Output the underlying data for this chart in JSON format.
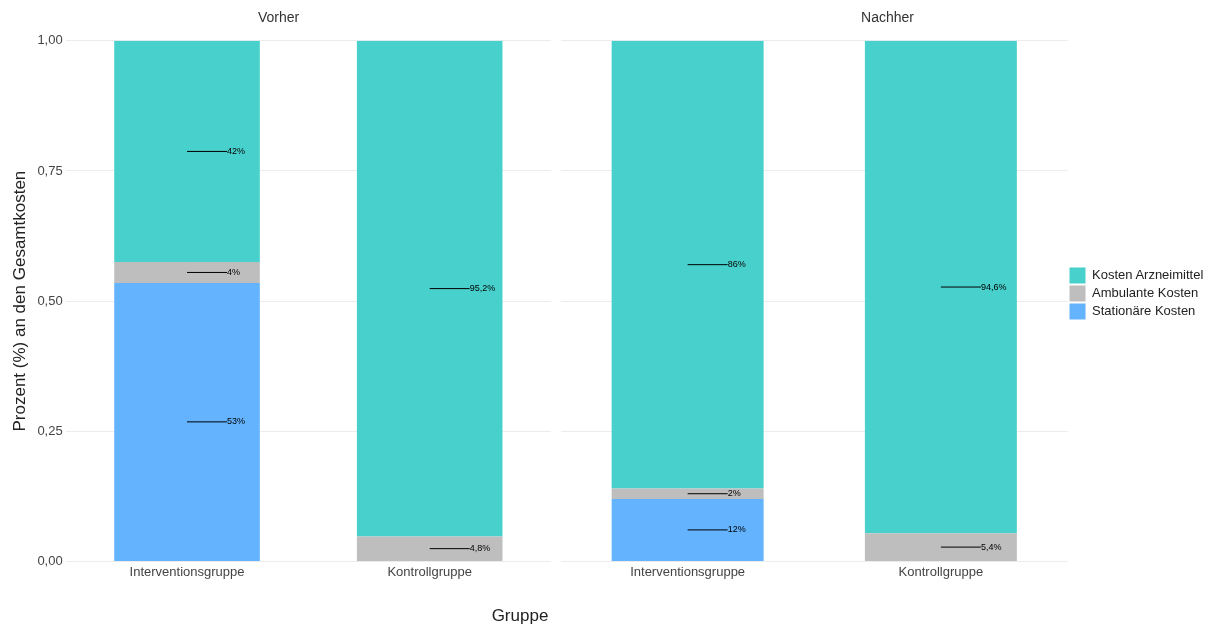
{
  "chart_data": [
    {
      "type": "bar",
      "title": "Vorher",
      "ylabel": "Prozent (%) an den Gesamtkosten",
      "xlabel": "Gruppe",
      "categories": [
        "Interventionsgruppe",
        "Kontrollgruppe"
      ],
      "stacked": true,
      "grid": true,
      "legend": false,
      "ylim": [
        0,
        1
      ],
      "yticks": [
        {
          "value": 0,
          "label": "0,00"
        },
        {
          "value": 0.25,
          "label": "0,25"
        },
        {
          "value": 0.5,
          "label": "0,50"
        },
        {
          "value": 0.75,
          "label": "0,75"
        },
        {
          "value": 1,
          "label": "1,00"
        }
      ],
      "series": [
        {
          "color": "#63b3ff",
          "values": [
            0.535,
            0
          ],
          "value_labels": [
            "53%",
            null
          ]
        },
        {
          "color": "#bebebe",
          "values": [
            0.04,
            0.048
          ],
          "value_labels": [
            "4%",
            "4,8%"
          ]
        },
        {
          "color": "#48d1cc",
          "values": [
            0.425,
            0.952
          ],
          "value_labels": [
            "42%",
            "95,2%"
          ]
        }
      ]
    },
    {
      "type": "bar",
      "title": "Nachher",
      "categories": [
        "Interventionsgruppe",
        "Kontrollgruppe"
      ],
      "stacked": true,
      "grid": true,
      "legend": "right",
      "tick_labels": "x",
      "ylim": [
        0,
        1
      ],
      "yticks": [
        0,
        0.25,
        0.5,
        0.75,
        1
      ],
      "series": [
        {
          "name": "Stationäre Kosten",
          "color": "#63b3ff",
          "values": [
            0.12,
            0
          ],
          "value_labels": [
            "12%",
            null
          ]
        },
        {
          "name": "Ambulante Kosten",
          "color": "#bebebe",
          "values": [
            0.02,
            0.054
          ],
          "value_labels": [
            "2%",
            "5,4%"
          ]
        },
        {
          "name": "Kosten Arzneimittel",
          "color": "#48d1cc",
          "values": [
            0.86,
            0.946
          ],
          "value_labels": [
            "86%",
            "94,6%"
          ]
        }
      ]
    }
  ]
}
